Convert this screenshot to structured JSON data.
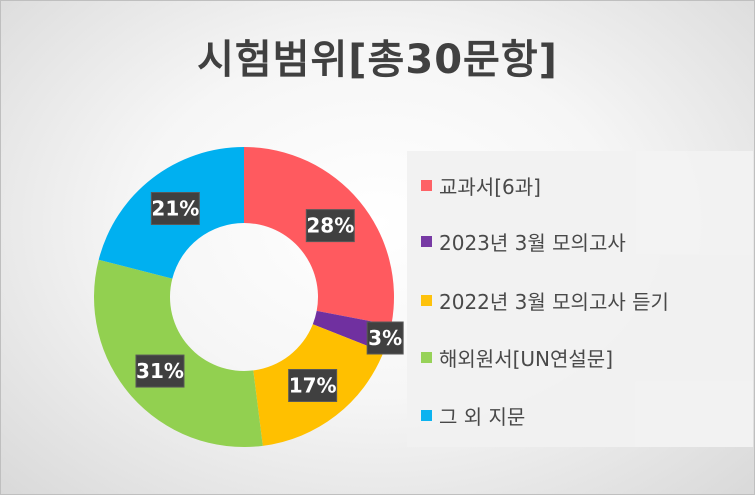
{
  "chart_data": {
    "type": "pie",
    "title": "시험범위[총30문항]",
    "donut": true,
    "legend_position": "right",
    "categories": [
      "교과서[6과]",
      "2023년 3월 모의고사",
      "2022년 3월 모의고사 듣기",
      "해외원서[UN연설문]",
      "그 외 지문"
    ],
    "values": [
      28,
      3,
      17,
      31,
      21
    ],
    "value_labels": [
      "28%",
      "3%",
      "17%",
      "31%",
      "21%"
    ],
    "colors": [
      "#ff5a5f",
      "#7030a0",
      "#ffc000",
      "#92d050",
      "#00b0f0"
    ]
  }
}
